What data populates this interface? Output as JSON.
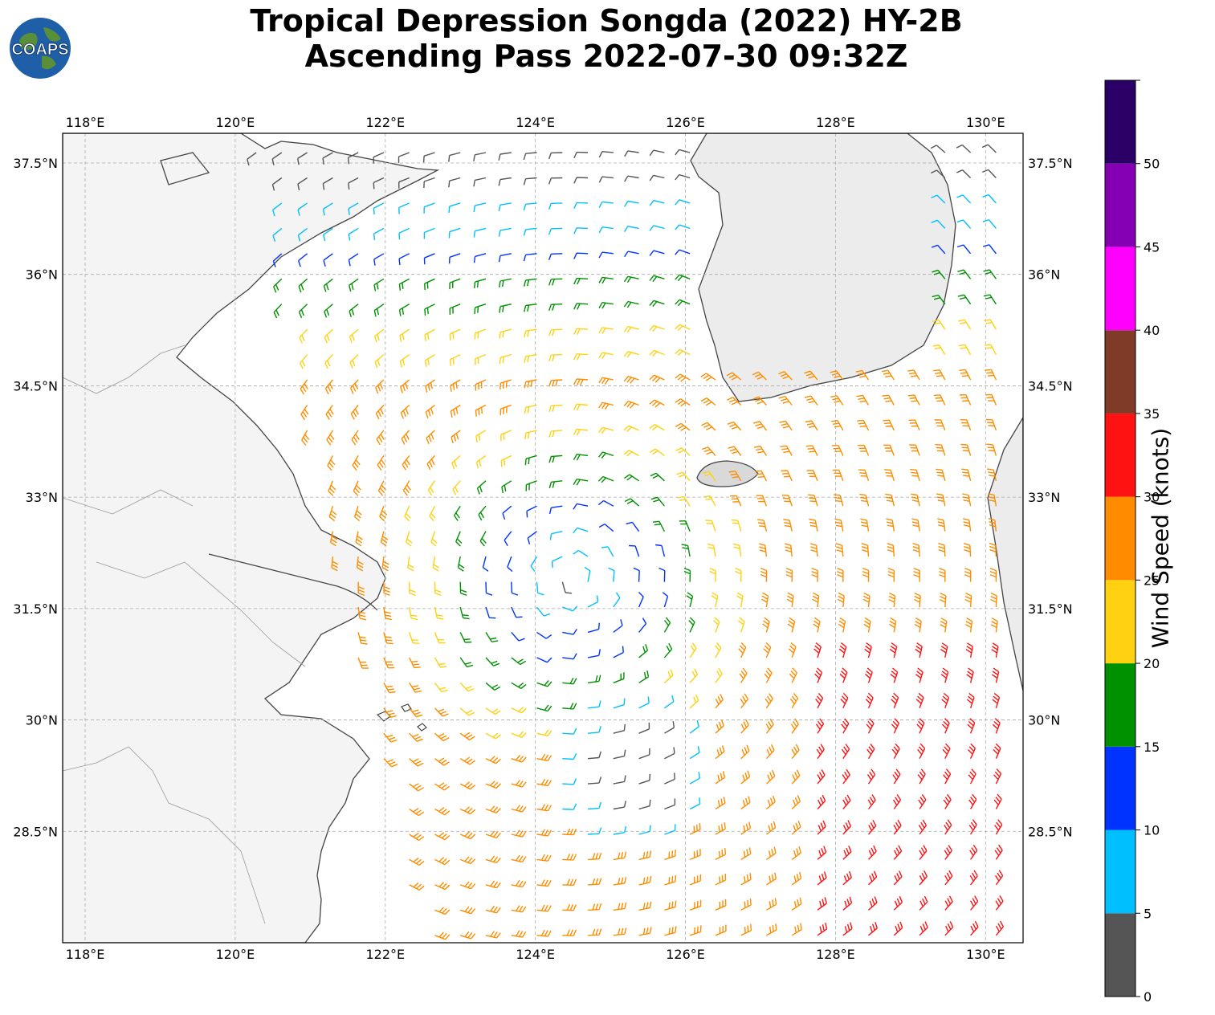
{
  "title": {
    "line1": "Tropical Depression Songda (2022) HY-2B",
    "line2": "Ascending Pass 2022-07-30 09:32Z"
  },
  "logo": {
    "text": "COAPS",
    "icon": "globe-logo-icon"
  },
  "map": {
    "lon_range": [
      117.7,
      130.5
    ],
    "lat_range": [
      27.0,
      37.9
    ],
    "gridlines": true,
    "lon_ticks": [
      "118°E",
      "120°E",
      "122°E",
      "124°E",
      "126°E",
      "128°E",
      "130°E"
    ],
    "lon_tick_values": [
      118,
      120,
      122,
      124,
      126,
      128,
      130
    ],
    "lat_ticks": [
      "37.5°N",
      "36°N",
      "34.5°N",
      "33°N",
      "31.5°N",
      "30°N",
      "28.5°N"
    ],
    "lat_tick_values": [
      37.5,
      36,
      34.5,
      33,
      31.5,
      30,
      28.5
    ],
    "storm_center": {
      "lon": 124.5,
      "lat": 31.9
    },
    "secondary_circulation": {
      "lon": 125.3,
      "lat": 29.3
    },
    "symbol": "wind-barbs"
  },
  "colorbar": {
    "label": "Wind Speed (knots)",
    "ticks": [
      "0",
      "5",
      "10",
      "15",
      "20",
      "25",
      "30",
      "35",
      "40",
      "45",
      "50"
    ],
    "bins": [
      {
        "min": 0,
        "max": 5,
        "color": "#555555"
      },
      {
        "min": 5,
        "max": 10,
        "color": "#00bfff"
      },
      {
        "min": 10,
        "max": 15,
        "color": "#0033ff"
      },
      {
        "min": 15,
        "max": 20,
        "color": "#009100"
      },
      {
        "min": 20,
        "max": 25,
        "color": "#ffd111"
      },
      {
        "min": 25,
        "max": 30,
        "color": "#ff8c00"
      },
      {
        "min": 30,
        "max": 35,
        "color": "#ff1212"
      },
      {
        "min": 35,
        "max": 40,
        "color": "#7f3a28"
      },
      {
        "min": 40,
        "max": 45,
        "color": "#ff00ff"
      },
      {
        "min": 45,
        "max": 50,
        "color": "#8600b3"
      },
      {
        "min": 50,
        "max": 55,
        "color": "#2b0066"
      }
    ]
  }
}
